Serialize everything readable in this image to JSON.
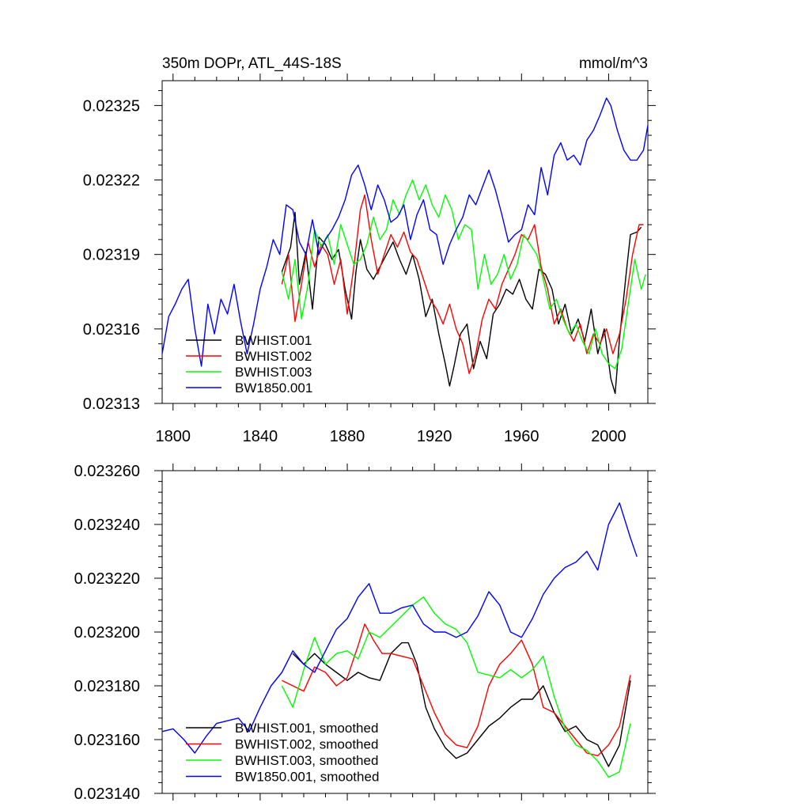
{
  "chart_data": [
    {
      "type": "line",
      "title_left": "350m DOPr, ATL_44S-18S",
      "title_right": "mmol/m^3",
      "xlim": [
        1795,
        2018
      ],
      "ylim": [
        0.02313,
        0.02326
      ],
      "x_ticks": [
        1800,
        1840,
        1880,
        1920,
        1960,
        2000
      ],
      "x_tick_labels": [
        "1800",
        "1840",
        "1880",
        "1920",
        "1960",
        "2000"
      ],
      "y_ticks": [
        0.02313,
        0.02316,
        0.02319,
        0.02322,
        0.02325
      ],
      "y_tick_labels": [
        "0.02313",
        "0.02316",
        "0.02319",
        "0.02322",
        "0.02325"
      ],
      "series": [
        {
          "name": "BWHIST.001",
          "color": "#000000",
          "x": [
            1850,
            1854,
            1856,
            1858,
            1861,
            1864,
            1867,
            1870,
            1873,
            1876,
            1879,
            1882,
            1884,
            1886,
            1889,
            1892,
            1895,
            1898,
            1901,
            1904,
            1907,
            1910,
            1913,
            1916,
            1919,
            1922,
            1925,
            1927,
            1929,
            1932,
            1935,
            1938,
            1941,
            1944,
            1947,
            1950,
            1953,
            1956,
            1959,
            1962,
            1965,
            1968,
            1971,
            1974,
            1977,
            1980,
            1983,
            1986,
            1989,
            1992,
            1995,
            1998,
            2001,
            2003,
            2005,
            2008,
            2010,
            2013,
            2015
          ],
          "y": [
            0.023183,
            0.023193,
            0.023207,
            0.023178,
            0.023191,
            0.023168,
            0.023197,
            0.023194,
            0.023188,
            0.023192,
            0.023176,
            0.023164,
            0.023183,
            0.023196,
            0.023184,
            0.02318,
            0.023185,
            0.02319,
            0.023195,
            0.023188,
            0.023182,
            0.02319,
            0.02318,
            0.023165,
            0.023172,
            0.023158,
            0.023146,
            0.023137,
            0.023145,
            0.023158,
            0.023162,
            0.023144,
            0.023155,
            0.023148,
            0.023166,
            0.02317,
            0.023176,
            0.023174,
            0.02318,
            0.023172,
            0.023168,
            0.023184,
            0.023182,
            0.023176,
            0.023162,
            0.02317,
            0.023158,
            0.023164,
            0.023155,
            0.023168,
            0.02315,
            0.02316,
            0.02314,
            0.023134,
            0.023156,
            0.023182,
            0.023198,
            0.023199,
            0.023201
          ]
        },
        {
          "name": "BWHIST.002",
          "color": "#ff0000",
          "x": [
            1850,
            1853,
            1856,
            1859,
            1862,
            1865,
            1868,
            1871,
            1874,
            1877,
            1880,
            1883,
            1886,
            1888,
            1891,
            1894,
            1897,
            1900,
            1903,
            1906,
            1909,
            1912,
            1915,
            1918,
            1921,
            1924,
            1927,
            1930,
            1933,
            1936,
            1939,
            1942,
            1945,
            1948,
            1951,
            1954,
            1957,
            1960,
            1963,
            1966,
            1969,
            1972,
            1975,
            1978,
            1981,
            1984,
            1987,
            1990,
            1993,
            1996,
            1999,
            2002,
            2005,
            2008,
            2011,
            2014,
            2016
          ],
          "y": [
            0.023178,
            0.02319,
            0.023163,
            0.023178,
            0.023195,
            0.023185,
            0.023194,
            0.02319,
            0.023178,
            0.023188,
            0.023166,
            0.023185,
            0.023208,
            0.023214,
            0.023196,
            0.023182,
            0.02319,
            0.023198,
            0.023193,
            0.023199,
            0.023191,
            0.023188,
            0.02318,
            0.023172,
            0.023168,
            0.023162,
            0.02317,
            0.02316,
            0.023154,
            0.023142,
            0.02315,
            0.023164,
            0.023172,
            0.023168,
            0.023178,
            0.023184,
            0.02319,
            0.023198,
            0.023196,
            0.023202,
            0.023185,
            0.023176,
            0.023162,
            0.023168,
            0.02316,
            0.023155,
            0.023162,
            0.02315,
            0.023158,
            0.023154,
            0.02316,
            0.02315,
            0.023158,
            0.023172,
            0.02319,
            0.023202,
            0.023202
          ]
        },
        {
          "name": "BWHIST.003",
          "color": "#00ff00",
          "x": [
            1850,
            1853,
            1856,
            1859,
            1862,
            1865,
            1868,
            1871,
            1874,
            1877,
            1880,
            1883,
            1886,
            1889,
            1892,
            1895,
            1898,
            1901,
            1904,
            1907,
            1910,
            1913,
            1916,
            1919,
            1922,
            1925,
            1928,
            1931,
            1934,
            1937,
            1940,
            1943,
            1946,
            1949,
            1952,
            1955,
            1958,
            1961,
            1964,
            1967,
            1970,
            1973,
            1976,
            1979,
            1982,
            1985,
            1988,
            1991,
            1994,
            1997,
            2000,
            2003,
            2006,
            2009,
            2012,
            2015,
            2017
          ],
          "y": [
            0.023183,
            0.023172,
            0.023188,
            0.023164,
            0.023178,
            0.0232,
            0.023193,
            0.023198,
            0.023186,
            0.023202,
            0.023194,
            0.023186,
            0.023188,
            0.023194,
            0.023205,
            0.023196,
            0.0232,
            0.023212,
            0.023206,
            0.023214,
            0.02322,
            0.023212,
            0.023218,
            0.02321,
            0.023205,
            0.023214,
            0.023208,
            0.023196,
            0.023202,
            0.0232,
            0.023176,
            0.02319,
            0.023178,
            0.023182,
            0.02319,
            0.02318,
            0.023186,
            0.023198,
            0.023194,
            0.02319,
            0.02318,
            0.023168,
            0.023172,
            0.023164,
            0.023158,
            0.023162,
            0.023155,
            0.02315,
            0.02316,
            0.02315,
            0.023146,
            0.023144,
            0.023152,
            0.02317,
            0.023188,
            0.023176,
            0.023182
          ]
        },
        {
          "name": "BW1850.001",
          "color": "#0000ff",
          "x": [
            1795,
            1798,
            1801,
            1804,
            1807,
            1810,
            1813,
            1816,
            1819,
            1822,
            1825,
            1828,
            1831,
            1834,
            1837,
            1840,
            1843,
            1846,
            1849,
            1852,
            1855,
            1858,
            1861,
            1864,
            1867,
            1870,
            1873,
            1876,
            1879,
            1882,
            1885,
            1888,
            1891,
            1894,
            1897,
            1900,
            1903,
            1906,
            1909,
            1912,
            1915,
            1918,
            1921,
            1924,
            1927,
            1930,
            1933,
            1936,
            1939,
            1942,
            1945,
            1948,
            1951,
            1954,
            1957,
            1960,
            1963,
            1966,
            1969,
            1972,
            1975,
            1978,
            1981,
            1984,
            1987,
            1990,
            1993,
            1996,
            1999,
            2001,
            2004,
            2007,
            2010,
            2013,
            2016,
            2018
          ],
          "y": [
            0.02315,
            0.023165,
            0.02317,
            0.023176,
            0.02318,
            0.02316,
            0.023145,
            0.02317,
            0.023158,
            0.023172,
            0.023166,
            0.023178,
            0.023163,
            0.02315,
            0.023162,
            0.023176,
            0.023185,
            0.023196,
            0.02319,
            0.02321,
            0.023208,
            0.023195,
            0.02319,
            0.023204,
            0.02319,
            0.023196,
            0.0232,
            0.023205,
            0.023212,
            0.023222,
            0.023226,
            0.023218,
            0.023208,
            0.023218,
            0.023212,
            0.023203,
            0.023205,
            0.02321,
            0.023196,
            0.023206,
            0.023212,
            0.0232,
            0.023198,
            0.023186,
            0.023194,
            0.0232,
            0.023205,
            0.023214,
            0.02321,
            0.023217,
            0.023224,
            0.023216,
            0.023206,
            0.023195,
            0.023198,
            0.0232,
            0.02321,
            0.023206,
            0.023225,
            0.023214,
            0.02323,
            0.023235,
            0.023228,
            0.02323,
            0.023226,
            0.023236,
            0.02324,
            0.023246,
            0.023253,
            0.02325,
            0.02324,
            0.023232,
            0.023228,
            0.023228,
            0.023232,
            0.023242
          ]
        }
      ]
    },
    {
      "type": "line",
      "xlim": [
        1795,
        2018
      ],
      "ylim": [
        0.02314,
        0.02326
      ],
      "x_ticks": [
        1800,
        1840,
        1880,
        1920,
        1960,
        2000
      ],
      "y_ticks": [
        0.02314,
        0.02316,
        0.02318,
        0.0232,
        0.02322,
        0.02324,
        0.02326
      ],
      "y_tick_labels": [
        "0.023140",
        "0.023160",
        "0.023180",
        "0.023200",
        "0.023220",
        "0.023240",
        "0.023260"
      ],
      "series": [
        {
          "name": "BWHIST.001, smoothed",
          "color": "#000000",
          "x": [
            1855,
            1860,
            1865,
            1870,
            1875,
            1880,
            1885,
            1890,
            1895,
            1900,
            1905,
            1908,
            1912,
            1916,
            1920,
            1925,
            1930,
            1935,
            1940,
            1945,
            1950,
            1955,
            1960,
            1965,
            1970,
            1975,
            1980,
            1985,
            1990,
            1995,
            2000,
            2005,
            2010
          ],
          "y": [
            0.023192,
            0.023188,
            0.023192,
            0.023188,
            0.023185,
            0.023182,
            0.023185,
            0.023183,
            0.023182,
            0.023192,
            0.023196,
            0.023196,
            0.023188,
            0.023172,
            0.023164,
            0.023157,
            0.023153,
            0.023155,
            0.02316,
            0.023165,
            0.023168,
            0.023172,
            0.023175,
            0.023175,
            0.02318,
            0.02317,
            0.023163,
            0.023165,
            0.02316,
            0.023158,
            0.02315,
            0.023158,
            0.023182
          ]
        },
        {
          "name": "BWHIST.002, smoothed",
          "color": "#ff0000",
          "x": [
            1850,
            1855,
            1860,
            1865,
            1870,
            1875,
            1880,
            1885,
            1888,
            1892,
            1896,
            1900,
            1905,
            1910,
            1915,
            1920,
            1925,
            1930,
            1935,
            1940,
            1945,
            1950,
            1955,
            1960,
            1965,
            1970,
            1975,
            1980,
            1985,
            1990,
            1995,
            2000,
            2005,
            2010
          ],
          "y": [
            0.023182,
            0.02318,
            0.023178,
            0.023187,
            0.023185,
            0.02318,
            0.023183,
            0.023195,
            0.023203,
            0.023197,
            0.023192,
            0.023192,
            0.023191,
            0.02319,
            0.02318,
            0.02317,
            0.023162,
            0.023158,
            0.023157,
            0.023165,
            0.02318,
            0.023188,
            0.023192,
            0.023197,
            0.023188,
            0.023172,
            0.02317,
            0.023165,
            0.02316,
            0.023155,
            0.023154,
            0.023158,
            0.023165,
            0.023184
          ]
        },
        {
          "name": "BWHIST.003, smoothed",
          "color": "#00ff00",
          "x": [
            1850,
            1855,
            1860,
            1865,
            1870,
            1875,
            1880,
            1885,
            1890,
            1895,
            1900,
            1905,
            1910,
            1915,
            1920,
            1925,
            1930,
            1935,
            1940,
            1945,
            1950,
            1955,
            1960,
            1965,
            1970,
            1975,
            1980,
            1985,
            1990,
            1995,
            2000,
            2005,
            2010
          ],
          "y": [
            0.02318,
            0.023172,
            0.023186,
            0.023198,
            0.023188,
            0.023192,
            0.023193,
            0.02319,
            0.0232,
            0.023198,
            0.023202,
            0.023206,
            0.02321,
            0.023213,
            0.023207,
            0.023203,
            0.023201,
            0.023196,
            0.023185,
            0.023184,
            0.023183,
            0.023186,
            0.023183,
            0.023186,
            0.023191,
            0.023176,
            0.023164,
            0.023158,
            0.023156,
            0.023152,
            0.023146,
            0.023148,
            0.023166
          ]
        },
        {
          "name": "BW1850.001, smoothed",
          "color": "#0000ff",
          "x": [
            1795,
            1800,
            1805,
            1810,
            1815,
            1820,
            1825,
            1830,
            1835,
            1840,
            1845,
            1850,
            1855,
            1860,
            1865,
            1870,
            1875,
            1880,
            1885,
            1890,
            1895,
            1900,
            1905,
            1910,
            1915,
            1920,
            1925,
            1930,
            1935,
            1940,
            1945,
            1950,
            1955,
            1960,
            1965,
            1970,
            1975,
            1980,
            1985,
            1990,
            1995,
            2000,
            2005,
            2010,
            2013
          ],
          "y": [
            0.023163,
            0.023164,
            0.02316,
            0.023155,
            0.023161,
            0.023166,
            0.023167,
            0.023168,
            0.023163,
            0.023172,
            0.02318,
            0.023185,
            0.023193,
            0.023188,
            0.023185,
            0.023193,
            0.023201,
            0.023205,
            0.023213,
            0.023218,
            0.023207,
            0.023207,
            0.023209,
            0.02321,
            0.023203,
            0.0232,
            0.0232,
            0.023198,
            0.0232,
            0.023206,
            0.023215,
            0.02321,
            0.0232,
            0.023198,
            0.023205,
            0.023214,
            0.02322,
            0.023224,
            0.023226,
            0.02323,
            0.023223,
            0.02324,
            0.023248,
            0.023235,
            0.023228
          ]
        }
      ]
    }
  ]
}
